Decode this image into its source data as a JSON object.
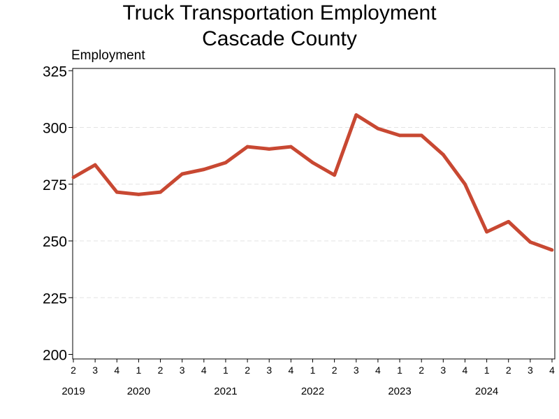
{
  "chart_data": {
    "type": "line",
    "title": "Truck Transportation Employment",
    "subtitle": "Cascade County",
    "ylabel": "Employment",
    "ylim": [
      198,
      326
    ],
    "yticks": [
      200,
      225,
      250,
      275,
      300,
      325
    ],
    "grid": "horizontal dashed",
    "line_color": "#c84832",
    "quarter_labels": [
      "2",
      "3",
      "4",
      "1",
      "2",
      "3",
      "4",
      "1",
      "2",
      "3",
      "4",
      "1",
      "2",
      "3",
      "4",
      "1",
      "2",
      "3",
      "4",
      "1",
      "2",
      "3",
      "4"
    ],
    "year_labels": [
      {
        "label": "2019",
        "index": 0
      },
      {
        "label": "2020",
        "index": 3
      },
      {
        "label": "2021",
        "index": 7
      },
      {
        "label": "2022",
        "index": 11
      },
      {
        "label": "2023",
        "index": 15
      },
      {
        "label": "2024",
        "index": 19
      }
    ],
    "series": [
      {
        "values": [
          278,
          283.5,
          271.5,
          270.5,
          271.5,
          279.5,
          281.5,
          284.5,
          291.5,
          290.5,
          291.5,
          284.5,
          279,
          305.5,
          299.5,
          296.5,
          296.5,
          288,
          275,
          254,
          258.5,
          249.5,
          246
        ]
      }
    ]
  }
}
